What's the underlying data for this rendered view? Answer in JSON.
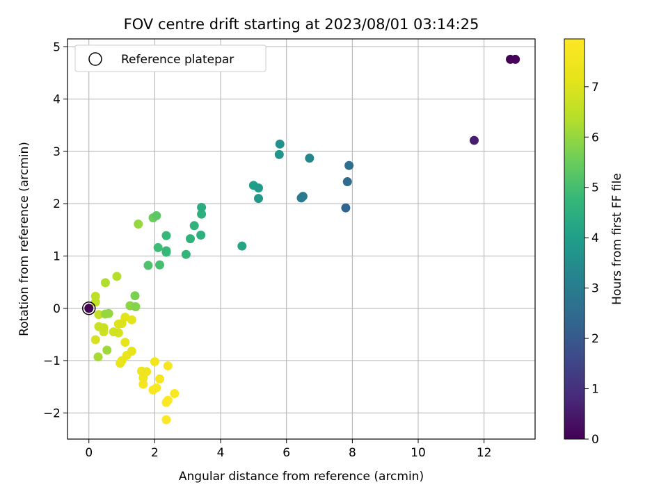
{
  "chart_data": {
    "type": "scatter",
    "title": "FOV centre drift starting at 2023/08/01 03:14:25",
    "xlabel": "Angular distance from reference (arcmin)",
    "ylabel": "Rotation from reference (arcmin)",
    "xlim": [
      -0.65,
      13.55
    ],
    "ylim": [
      -2.5,
      5.15
    ],
    "xticks": [
      0,
      2,
      4,
      6,
      8,
      10,
      12
    ],
    "yticks": [
      -2,
      -1,
      0,
      1,
      2,
      3,
      4,
      5
    ],
    "grid": true,
    "legend": {
      "placement": "top-left",
      "entries": [
        "Reference platepar"
      ]
    },
    "reference_point": {
      "x": 0,
      "y": 0
    },
    "colorbar": {
      "label": "Hours from first FF file",
      "range": [
        0,
        7.95
      ],
      "ticks": [
        0,
        1,
        2,
        3,
        4,
        5,
        6,
        7
      ],
      "colormap": "viridis"
    },
    "points": [
      {
        "x": 12.8,
        "y": 4.76,
        "c": 0.05
      },
      {
        "x": 12.95,
        "y": 4.76,
        "c": 0.1
      },
      {
        "x": 0.0,
        "y": 0.0,
        "c": 0.0
      },
      {
        "x": 11.7,
        "y": 3.21,
        "c": 0.6
      },
      {
        "x": 7.8,
        "y": 1.92,
        "c": 2.3
      },
      {
        "x": 7.85,
        "y": 2.42,
        "c": 2.5
      },
      {
        "x": 7.9,
        "y": 2.73,
        "c": 2.6
      },
      {
        "x": 6.45,
        "y": 2.11,
        "c": 2.9
      },
      {
        "x": 6.5,
        "y": 2.14,
        "c": 3.0
      },
      {
        "x": 6.7,
        "y": 2.87,
        "c": 3.3
      },
      {
        "x": 5.8,
        "y": 3.14,
        "c": 3.6
      },
      {
        "x": 5.78,
        "y": 2.94,
        "c": 3.7
      },
      {
        "x": 5.15,
        "y": 2.1,
        "c": 3.8
      },
      {
        "x": 5.15,
        "y": 2.3,
        "c": 3.9
      },
      {
        "x": 5.0,
        "y": 2.35,
        "c": 4.0
      },
      {
        "x": 4.65,
        "y": 1.19,
        "c": 4.2
      },
      {
        "x": 3.42,
        "y": 1.93,
        "c": 4.4
      },
      {
        "x": 3.42,
        "y": 1.8,
        "c": 4.5
      },
      {
        "x": 3.4,
        "y": 1.4,
        "c": 4.5
      },
      {
        "x": 3.2,
        "y": 1.58,
        "c": 4.6
      },
      {
        "x": 3.08,
        "y": 1.33,
        "c": 4.6
      },
      {
        "x": 2.95,
        "y": 1.03,
        "c": 4.7
      },
      {
        "x": 2.35,
        "y": 1.39,
        "c": 4.8
      },
      {
        "x": 2.35,
        "y": 1.1,
        "c": 4.8
      },
      {
        "x": 2.35,
        "y": 1.07,
        "c": 4.9
      },
      {
        "x": 2.1,
        "y": 1.16,
        "c": 4.9
      },
      {
        "x": 2.15,
        "y": 0.83,
        "c": 5.0
      },
      {
        "x": 1.8,
        "y": 0.82,
        "c": 5.1
      },
      {
        "x": 2.05,
        "y": 1.77,
        "c": 5.3
      },
      {
        "x": 1.95,
        "y": 1.73,
        "c": 5.5
      },
      {
        "x": 1.5,
        "y": 1.61,
        "c": 6.0
      },
      {
        "x": 1.4,
        "y": 0.24,
        "c": 5.7
      },
      {
        "x": 1.42,
        "y": 0.03,
        "c": 5.8
      },
      {
        "x": 1.25,
        "y": 0.05,
        "c": 5.9
      },
      {
        "x": 0.6,
        "y": -0.1,
        "c": 6.0
      },
      {
        "x": 0.5,
        "y": -0.11,
        "c": 6.0
      },
      {
        "x": 0.55,
        "y": -0.8,
        "c": 6.1
      },
      {
        "x": 0.28,
        "y": -0.93,
        "c": 6.2
      },
      {
        "x": 0.5,
        "y": 0.49,
        "c": 6.3
      },
      {
        "x": 0.85,
        "y": 0.61,
        "c": 6.4
      },
      {
        "x": 0.2,
        "y": 0.23,
        "c": 6.5
      },
      {
        "x": 0.2,
        "y": 0.12,
        "c": 6.6
      },
      {
        "x": 0.3,
        "y": -0.12,
        "c": 6.6
      },
      {
        "x": 0.3,
        "y": -0.35,
        "c": 6.7
      },
      {
        "x": 0.45,
        "y": -0.37,
        "c": 6.7
      },
      {
        "x": 0.45,
        "y": -0.45,
        "c": 6.8
      },
      {
        "x": 0.75,
        "y": -0.45,
        "c": 6.8
      },
      {
        "x": 0.9,
        "y": -0.47,
        "c": 6.9
      },
      {
        "x": 0.2,
        "y": -0.6,
        "c": 6.9
      },
      {
        "x": 0.9,
        "y": -0.3,
        "c": 7.0
      },
      {
        "x": 1.0,
        "y": -0.29,
        "c": 7.0
      },
      {
        "x": 1.1,
        "y": -0.17,
        "c": 7.1
      },
      {
        "x": 1.3,
        "y": -0.22,
        "c": 7.1
      },
      {
        "x": 1.1,
        "y": -0.65,
        "c": 7.2
      },
      {
        "x": 1.3,
        "y": -0.82,
        "c": 7.2
      },
      {
        "x": 1.15,
        "y": -0.9,
        "c": 7.3
      },
      {
        "x": 1.0,
        "y": -1.0,
        "c": 7.3
      },
      {
        "x": 0.95,
        "y": -1.05,
        "c": 7.3
      },
      {
        "x": 1.6,
        "y": -1.2,
        "c": 7.4
      },
      {
        "x": 1.75,
        "y": -1.21,
        "c": 7.5
      },
      {
        "x": 1.65,
        "y": -1.33,
        "c": 7.5
      },
      {
        "x": 1.65,
        "y": -1.45,
        "c": 7.6
      },
      {
        "x": 2.0,
        "y": -1.02,
        "c": 7.6
      },
      {
        "x": 2.4,
        "y": -1.1,
        "c": 7.7
      },
      {
        "x": 2.15,
        "y": -1.35,
        "c": 7.7
      },
      {
        "x": 2.05,
        "y": -1.52,
        "c": 7.8
      },
      {
        "x": 1.95,
        "y": -1.56,
        "c": 7.8
      },
      {
        "x": 2.6,
        "y": -1.63,
        "c": 7.85
      },
      {
        "x": 2.4,
        "y": -1.76,
        "c": 7.9
      },
      {
        "x": 2.35,
        "y": -1.8,
        "c": 7.9
      },
      {
        "x": 2.35,
        "y": -2.13,
        "c": 7.95
      }
    ]
  }
}
